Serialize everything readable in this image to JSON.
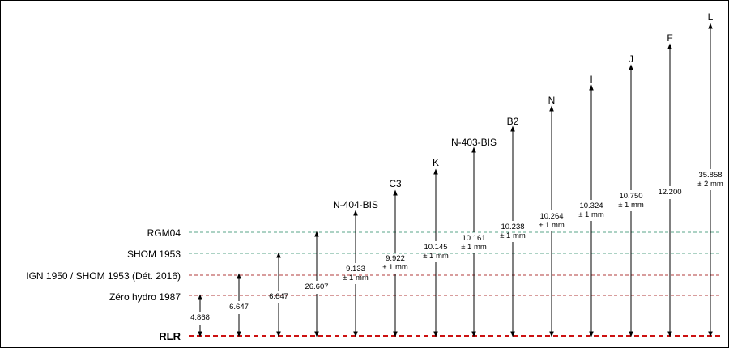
{
  "levels": [
    {
      "label": "RGM04",
      "color": "#5aa58a"
    },
    {
      "label": "SHOM 1953",
      "color": "#5aa58a"
    },
    {
      "label": "IGN 1950 / SHOM 1953 (Dét. 2016)",
      "color": "#b23b3b"
    },
    {
      "label": "Zéro hydro 1987",
      "color": "#b23b3b"
    }
  ],
  "baseline": {
    "label": "RLR",
    "color": "#cc1111"
  },
  "arrows": [
    {
      "top": "",
      "value": "4.868",
      "tol": ""
    },
    {
      "top": "",
      "value": "6.647",
      "tol": ""
    },
    {
      "top": "",
      "value": "6.647",
      "tol": ""
    },
    {
      "top": "",
      "value": "26.607",
      "tol": ""
    },
    {
      "top": "N-404-BIS",
      "value": "9.133",
      "tol": "± 1 mm"
    },
    {
      "top": "C3",
      "value": "9.922",
      "tol": "± 1 mm"
    },
    {
      "top": "K",
      "value": "10.145",
      "tol": "± 1 mm"
    },
    {
      "top": "N-403-BIS",
      "value": "10.161",
      "tol": "± 1 mm"
    },
    {
      "top": "B2",
      "value": "10.238",
      "tol": "± 1 mm"
    },
    {
      "top": "N",
      "value": "10.264",
      "tol": "± 1 mm"
    },
    {
      "top": "I",
      "value": "10.324",
      "tol": "± 1 mm"
    },
    {
      "top": "J",
      "value": "10.750",
      "tol": "± 1 mm"
    },
    {
      "top": "F",
      "value": "12.200",
      "tol": ""
    },
    {
      "top": "L",
      "value": "35.858",
      "tol": "± 2 mm"
    }
  ]
}
